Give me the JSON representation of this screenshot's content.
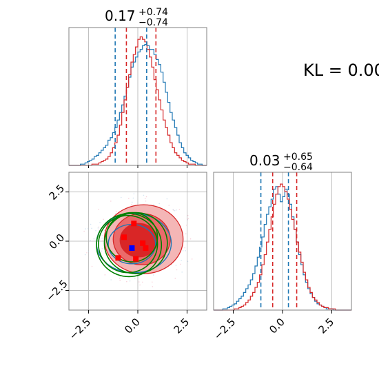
{
  "chart_data": {
    "type": "corner",
    "annotation": "KL = 0.00",
    "colors": {
      "blue": "#1f77b4",
      "red": "#d62728",
      "green": "#008000",
      "grid": "#b0b0b0"
    },
    "xlim": [
      -3.5,
      3.5
    ],
    "ylim": [
      -3.5,
      3.5
    ],
    "xticks": [
      -2.5,
      0.0,
      2.5
    ],
    "yticks": [
      -2.5,
      0.0,
      2.5
    ],
    "tick_labels": [
      "−2.5",
      "0.0",
      "2.5"
    ],
    "param1": {
      "title": {
        "value": "0.17",
        "plus": "+0.74",
        "minus": "−0.74"
      },
      "blue_quantiles": [
        -1.15,
        0.45
      ],
      "red_quantiles": [
        -0.58,
        0.92
      ],
      "blue_hist": [
        0,
        0,
        0,
        0,
        0,
        1,
        1,
        2,
        3,
        4,
        5,
        7,
        8,
        10,
        12,
        14,
        16,
        20,
        22,
        26,
        30,
        36,
        42,
        48,
        55,
        62,
        70,
        78,
        82,
        86,
        90,
        92,
        95,
        96,
        95,
        92,
        92,
        88,
        84,
        80,
        74,
        66,
        58,
        50,
        42,
        36,
        30,
        24,
        18,
        14,
        10,
        8,
        6,
        4,
        3,
        2,
        1,
        1,
        0,
        0
      ],
      "red_hist": [
        0,
        0,
        0,
        0,
        0,
        0,
        0,
        0,
        0,
        0,
        1,
        1,
        1,
        2,
        3,
        4,
        5,
        7,
        10,
        14,
        18,
        24,
        32,
        42,
        52,
        62,
        72,
        82,
        88,
        94,
        100,
        102,
        100,
        98,
        92,
        86,
        78,
        68,
        60,
        52,
        44,
        36,
        30,
        24,
        18,
        14,
        10,
        8,
        6,
        4,
        3,
        2,
        1,
        1,
        1,
        0,
        0,
        0,
        0,
        0
      ]
    },
    "param2": {
      "title": {
        "value": "0.03",
        "plus": "+0.65",
        "minus": "−0.64"
      },
      "blue_quantiles": [
        -1.1,
        0.3
      ],
      "red_quantiles": [
        -0.5,
        0.72
      ],
      "blue_hist": [
        0,
        0,
        0,
        0,
        1,
        1,
        2,
        3,
        4,
        5,
        7,
        9,
        11,
        14,
        17,
        20,
        24,
        29,
        35,
        42,
        50,
        58,
        68,
        76,
        82,
        88,
        96,
        98,
        92,
        86,
        90,
        96,
        92,
        84,
        74,
        64,
        54,
        44,
        36,
        28,
        22,
        17,
        13,
        10,
        7,
        5,
        4,
        3,
        2,
        1,
        1,
        1,
        0,
        0,
        0,
        0,
        0,
        0,
        0,
        0
      ],
      "red_hist": [
        0,
        0,
        0,
        0,
        0,
        0,
        0,
        0,
        0,
        1,
        1,
        2,
        3,
        4,
        6,
        8,
        11,
        14,
        18,
        22,
        28,
        36,
        44,
        54,
        64,
        74,
        84,
        92,
        98,
        100,
        98,
        94,
        88,
        80,
        72,
        64,
        54,
        46,
        38,
        30,
        24,
        18,
        14,
        10,
        8,
        6,
        4,
        3,
        2,
        2,
        1,
        1,
        1,
        0,
        0,
        0,
        0,
        0,
        0,
        0
      ]
    },
    "scatter_2d": {
      "red_contours": [
        {
          "cx": 0.3,
          "cy": 0.1,
          "rx": 2.0,
          "ry": 1.75,
          "fill": "#f4b6b6"
        },
        {
          "cx": 0.2,
          "cy": 0.1,
          "rx": 1.45,
          "ry": 1.3,
          "fill": "#ea6b6b"
        },
        {
          "cx": 0.05,
          "cy": 0.05,
          "rx": 0.95,
          "ry": 0.85,
          "fill": "#d92626"
        }
      ],
      "blue_contours": [
        {
          "cx": -0.2,
          "cy": -0.1,
          "rx": 1.9,
          "ry": 1.5
        },
        {
          "cx": -0.3,
          "cy": -0.15,
          "rx": 1.2,
          "ry": 1.0
        }
      ],
      "green_contours": [
        {
          "cx": -0.5,
          "cy": -0.15,
          "rx": 1.5,
          "ry": 1.45
        },
        {
          "cx": -0.45,
          "cy": -0.2,
          "rx": 1.65,
          "ry": 1.6
        },
        {
          "cx": -0.1,
          "cy": -0.1,
          "rx": 1.6,
          "ry": 1.55
        },
        {
          "cx": -0.3,
          "cy": 0.2,
          "rx": 1.3,
          "ry": 1.25
        }
      ],
      "red_squares": [
        [
          -1.0,
          -0.85
        ],
        [
          -0.7,
          0.2
        ],
        [
          -0.2,
          0.9
        ],
        [
          -0.1,
          -0.9
        ],
        [
          0.25,
          -0.1
        ],
        [
          0.4,
          -0.35
        ]
      ],
      "blue_square": [
        -0.3,
        -0.35
      ]
    }
  }
}
